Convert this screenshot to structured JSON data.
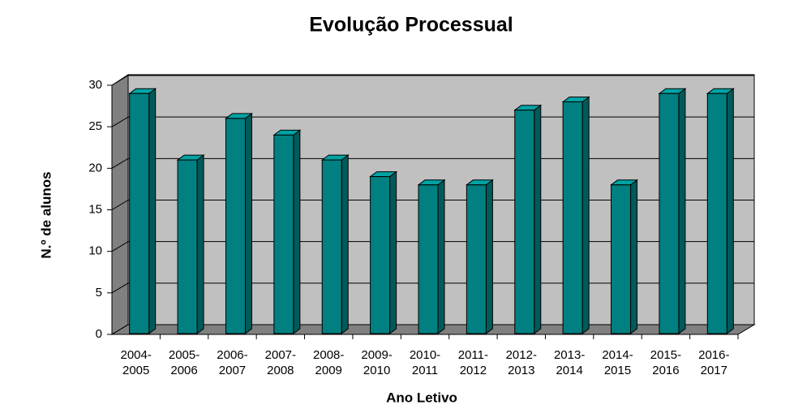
{
  "chart_data": {
    "type": "bar",
    "title": "Evolução Processual",
    "x_label": "Ano Letivo",
    "y_label": "N.º de alunos",
    "categories": [
      "2004-\n2005",
      "2005-\n2006",
      "2006-\n2007",
      "2007-\n2008",
      "2008-\n2009",
      "2009-\n2010",
      "2010-\n2011",
      "2011-\n2012",
      "2012-\n2013",
      "2013-\n2014",
      "2014-\n2015",
      "2015-\n2016",
      "2016-\n2017"
    ],
    "values": [
      29,
      21,
      26,
      24,
      21,
      19,
      18,
      18,
      27,
      28,
      18,
      29,
      29
    ],
    "color": "#008080",
    "ylim": [
      0,
      30
    ],
    "yticks": [
      0,
      5,
      10,
      15,
      20,
      25,
      30
    ],
    "grid": true
  }
}
